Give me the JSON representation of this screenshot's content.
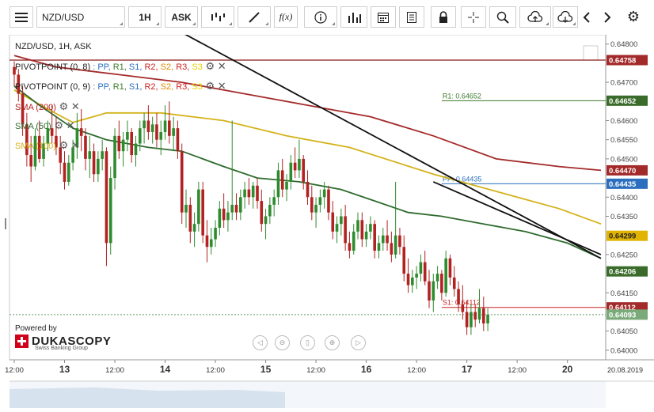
{
  "toolbar": {
    "menu_icon": "hamburger-menu-icon",
    "symbol": "NZD/USD",
    "timeframe": "1H",
    "side": "ASK",
    "items": [
      "candles-icon",
      "draw-line-icon",
      "function-icon",
      "info-icon",
      "volume-bars-icon",
      "calendar-icon",
      "report-icon",
      "lock-icon",
      "crosshair-icon",
      "zoom-icon",
      "upload-cloud-icon",
      "download-cloud-icon",
      "prev-icon",
      "next-icon",
      "gear-icon"
    ],
    "function_label": "f(x)"
  },
  "chart_header": "NZD/USD, 1H, ASK",
  "indicators": [
    {
      "name": "PIVOTPOINT (0, 8)",
      "parts": [
        [
          "PP",
          "#2a6ebd"
        ],
        [
          "R1",
          "#3a7a2a"
        ],
        [
          "S1",
          "#2a6ebd"
        ],
        [
          "R2",
          "#cc2020"
        ],
        [
          "S2",
          "#e08a00"
        ],
        [
          "R3",
          "#cc2020"
        ],
        [
          "S3",
          "#e8d000"
        ]
      ]
    },
    {
      "name": "PIVOTPOINT (0, 9)",
      "parts": [
        [
          "PP",
          "#2a6ebd"
        ],
        [
          "R1",
          "#3a7a2a"
        ],
        [
          "S1",
          "#2a6ebd"
        ],
        [
          "R2",
          "#cc2020"
        ],
        [
          "S2",
          "#e08a00"
        ],
        [
          "R3",
          "#cc2020"
        ],
        [
          "S3",
          "#e8d000"
        ]
      ]
    },
    {
      "name": "SMA (200)",
      "color": "#b22222"
    },
    {
      "name": "SMA (50)",
      "color": "#2e6b2e"
    },
    {
      "name": "SMA (100)",
      "color": "#d4b21a"
    }
  ],
  "powered_by": "Powered by",
  "brand": "DUKASCOPY",
  "brand_sub": "Swiss Banking Group",
  "chart_data": {
    "type": "candlestick",
    "symbol": "NZD/USD",
    "timeframe": "1H",
    "ylim": [
      0.63975,
      0.6482
    ],
    "y_ticks": [
      "0.64800",
      "0.64700",
      "0.64600",
      "0.64550",
      "0.64500",
      "0.64400",
      "0.64350",
      "0.64250",
      "0.64150",
      "0.64050",
      "0.64000"
    ],
    "x_ticks": [
      {
        "label": "12:00",
        "bold": false,
        "t": 0
      },
      {
        "label": "13",
        "bold": true,
        "t": 12
      },
      {
        "label": "12:00",
        "bold": false,
        "t": 24
      },
      {
        "label": "14",
        "bold": true,
        "t": 36
      },
      {
        "label": "12:00",
        "bold": false,
        "t": 48
      },
      {
        "label": "15",
        "bold": true,
        "t": 60
      },
      {
        "label": "12:00",
        "bold": false,
        "t": 72
      },
      {
        "label": "16",
        "bold": true,
        "t": 84
      },
      {
        "label": "12:00",
        "bold": false,
        "t": 96
      },
      {
        "label": "17",
        "bold": true,
        "t": 108
      },
      {
        "label": "12:00",
        "bold": false,
        "t": 120
      },
      {
        "label": "20",
        "bold": true,
        "t": 132
      }
    ],
    "x_end_label": "20.08.2019",
    "candles": [
      [
        0.6474,
        0.64755,
        0.6469,
        0.6472
      ],
      [
        0.6472,
        0.64735,
        0.6465,
        0.6467
      ],
      [
        0.6467,
        0.6469,
        0.6456,
        0.6459
      ],
      [
        0.6459,
        0.6462,
        0.6448,
        0.6451
      ],
      [
        0.6451,
        0.6456,
        0.6444,
        0.6448
      ],
      [
        0.6448,
        0.6458,
        0.6447,
        0.6456
      ],
      [
        0.6456,
        0.646,
        0.6449,
        0.645
      ],
      [
        0.645,
        0.6456,
        0.6448,
        0.6454
      ],
      [
        0.6454,
        0.646,
        0.6452,
        0.6458
      ],
      [
        0.6458,
        0.6464,
        0.6454,
        0.6456
      ],
      [
        0.6456,
        0.6461,
        0.6451,
        0.6453
      ],
      [
        0.6453,
        0.6456,
        0.6446,
        0.6449
      ],
      [
        0.6449,
        0.6452,
        0.6442,
        0.6444
      ],
      [
        0.6444,
        0.6451,
        0.6443,
        0.6449
      ],
      [
        0.6449,
        0.6455,
        0.6447,
        0.6453
      ],
      [
        0.6453,
        0.6462,
        0.645,
        0.6458
      ],
      [
        0.6458,
        0.6463,
        0.6452,
        0.6456
      ],
      [
        0.6456,
        0.6458,
        0.6447,
        0.645
      ],
      [
        0.645,
        0.6456,
        0.6445,
        0.6452
      ],
      [
        0.6452,
        0.6454,
        0.6444,
        0.6446
      ],
      [
        0.6446,
        0.6452,
        0.6444,
        0.645
      ],
      [
        0.645,
        0.6455,
        0.6447,
        0.6452
      ],
      [
        0.6452,
        0.6453,
        0.6422,
        0.6428
      ],
      [
        0.6428,
        0.6448,
        0.6425,
        0.6445
      ],
      [
        0.6445,
        0.6458,
        0.6442,
        0.6456
      ],
      [
        0.6456,
        0.646,
        0.645,
        0.6452
      ],
      [
        0.6452,
        0.6457,
        0.6448,
        0.6455
      ],
      [
        0.6455,
        0.646,
        0.6452,
        0.6457
      ],
      [
        0.6457,
        0.6458,
        0.6449,
        0.6451
      ],
      [
        0.6451,
        0.6456,
        0.6448,
        0.6454
      ],
      [
        0.6454,
        0.646,
        0.6452,
        0.6458
      ],
      [
        0.6458,
        0.6462,
        0.6454,
        0.646
      ],
      [
        0.646,
        0.6464,
        0.6455,
        0.6457
      ],
      [
        0.6457,
        0.6461,
        0.6454,
        0.6459
      ],
      [
        0.6459,
        0.6462,
        0.6453,
        0.6455
      ],
      [
        0.6455,
        0.646,
        0.6451,
        0.6457
      ],
      [
        0.6457,
        0.6464,
        0.6455,
        0.646
      ],
      [
        0.646,
        0.6465,
        0.6454,
        0.6456
      ],
      [
        0.6456,
        0.6461,
        0.6452,
        0.6458
      ],
      [
        0.6458,
        0.646,
        0.645,
        0.6452
      ],
      [
        0.6452,
        0.6454,
        0.6433,
        0.6436
      ],
      [
        0.6436,
        0.6442,
        0.6432,
        0.6438
      ],
      [
        0.6438,
        0.644,
        0.6428,
        0.6431
      ],
      [
        0.6431,
        0.6436,
        0.6427,
        0.6433
      ],
      [
        0.6433,
        0.6444,
        0.6431,
        0.6442
      ],
      [
        0.6442,
        0.6444,
        0.6428,
        0.643
      ],
      [
        0.643,
        0.6434,
        0.6423,
        0.6427
      ],
      [
        0.6427,
        0.6432,
        0.6425,
        0.6429
      ],
      [
        0.6429,
        0.6434,
        0.6427,
        0.6432
      ],
      [
        0.6432,
        0.6439,
        0.643,
        0.6437
      ],
      [
        0.6437,
        0.6441,
        0.6432,
        0.6434
      ],
      [
        0.6434,
        0.6439,
        0.6431,
        0.6436
      ],
      [
        0.6436,
        0.646,
        0.6434,
        0.6438
      ],
      [
        0.6438,
        0.6441,
        0.6434,
        0.6436
      ],
      [
        0.6436,
        0.6442,
        0.6434,
        0.644
      ],
      [
        0.644,
        0.6444,
        0.6437,
        0.6442
      ],
      [
        0.6442,
        0.6445,
        0.6438,
        0.644
      ],
      [
        0.644,
        0.6444,
        0.6437,
        0.6443
      ],
      [
        0.6443,
        0.6445,
        0.6437,
        0.6439
      ],
      [
        0.6439,
        0.6442,
        0.6431,
        0.6433
      ],
      [
        0.6433,
        0.6437,
        0.6429,
        0.6435
      ],
      [
        0.6435,
        0.644,
        0.6433,
        0.6438
      ],
      [
        0.6438,
        0.6442,
        0.6435,
        0.644
      ],
      [
        0.644,
        0.6449,
        0.6438,
        0.6447
      ],
      [
        0.6447,
        0.645,
        0.644,
        0.6442
      ],
      [
        0.6442,
        0.6446,
        0.6439,
        0.6444
      ],
      [
        0.6444,
        0.6451,
        0.6442,
        0.6449
      ],
      [
        0.6449,
        0.6453,
        0.6445,
        0.6447
      ],
      [
        0.6447,
        0.6455,
        0.6445,
        0.645
      ],
      [
        0.645,
        0.6451,
        0.6442,
        0.6444
      ],
      [
        0.6444,
        0.6447,
        0.6438,
        0.644
      ],
      [
        0.644,
        0.6443,
        0.6434,
        0.6436
      ],
      [
        0.6436,
        0.644,
        0.6432,
        0.6438
      ],
      [
        0.6438,
        0.6442,
        0.6436,
        0.644
      ],
      [
        0.644,
        0.6444,
        0.6437,
        0.6442
      ],
      [
        0.6442,
        0.6443,
        0.6434,
        0.6436
      ],
      [
        0.6436,
        0.6439,
        0.6429,
        0.6431
      ],
      [
        0.6431,
        0.6435,
        0.6428,
        0.6433
      ],
      [
        0.6433,
        0.6437,
        0.643,
        0.6435
      ],
      [
        0.6435,
        0.6438,
        0.6426,
        0.6428
      ],
      [
        0.6428,
        0.6431,
        0.6424,
        0.6426
      ],
      [
        0.6426,
        0.6433,
        0.6425,
        0.6431
      ],
      [
        0.6431,
        0.6436,
        0.6429,
        0.6434
      ],
      [
        0.6434,
        0.6436,
        0.6427,
        0.6429
      ],
      [
        0.6429,
        0.6433,
        0.6427,
        0.6431
      ],
      [
        0.6431,
        0.6435,
        0.6429,
        0.6433
      ],
      [
        0.6433,
        0.6434,
        0.6424,
        0.6426
      ],
      [
        0.6426,
        0.643,
        0.6424,
        0.6428
      ],
      [
        0.6428,
        0.6432,
        0.6426,
        0.643
      ],
      [
        0.643,
        0.6434,
        0.6426,
        0.6428
      ],
      [
        0.6428,
        0.6431,
        0.6423,
        0.6425
      ],
      [
        0.6425,
        0.6444,
        0.6424,
        0.643
      ],
      [
        0.643,
        0.6432,
        0.6425,
        0.6427
      ],
      [
        0.6427,
        0.643,
        0.6418,
        0.642
      ],
      [
        0.642,
        0.6424,
        0.6415,
        0.6417
      ],
      [
        0.6417,
        0.6421,
        0.6415,
        0.6419
      ],
      [
        0.6419,
        0.6422,
        0.6416,
        0.642
      ],
      [
        0.642,
        0.6425,
        0.6418,
        0.6423
      ],
      [
        0.6423,
        0.6426,
        0.6417,
        0.6418
      ],
      [
        0.6418,
        0.6421,
        0.6411,
        0.6413
      ],
      [
        0.6413,
        0.642,
        0.641,
        0.6418
      ],
      [
        0.6418,
        0.6422,
        0.6416,
        0.642
      ],
      [
        0.642,
        0.6421,
        0.6413,
        0.6415
      ],
      [
        0.6415,
        0.6426,
        0.6414,
        0.6424
      ],
      [
        0.6424,
        0.6425,
        0.6417,
        0.6419
      ],
      [
        0.6419,
        0.6422,
        0.6414,
        0.6416
      ],
      [
        0.6416,
        0.6418,
        0.641,
        0.6412
      ],
      [
        0.6412,
        0.6417,
        0.6408,
        0.641
      ],
      [
        0.641,
        0.6413,
        0.6404,
        0.6406
      ],
      [
        0.6406,
        0.6412,
        0.6404,
        0.641
      ],
      [
        0.641,
        0.6412,
        0.6406,
        0.6408
      ],
      [
        0.6408,
        0.6416,
        0.6407,
        0.6411
      ],
      [
        0.6411,
        0.6414,
        0.6405,
        0.6407
      ],
      [
        0.6407,
        0.6411,
        0.6405,
        0.64093
      ]
    ],
    "sma200": [
      [
        0,
        0.6477
      ],
      [
        10,
        0.6474
      ],
      [
        25,
        0.6472
      ],
      [
        40,
        0.647
      ],
      [
        55,
        0.6467
      ],
      [
        70,
        0.6464
      ],
      [
        85,
        0.6461
      ],
      [
        100,
        0.6456
      ],
      [
        115,
        0.645
      ],
      [
        130,
        0.6448
      ],
      [
        140,
        0.6447
      ]
    ],
    "sma100": [
      [
        0,
        0.6468
      ],
      [
        8,
        0.6463
      ],
      [
        14,
        0.64595
      ],
      [
        22,
        0.6462
      ],
      [
        35,
        0.6462
      ],
      [
        50,
        0.646
      ],
      [
        65,
        0.6456
      ],
      [
        80,
        0.6453
      ],
      [
        90,
        0.64495
      ],
      [
        100,
        0.6446
      ],
      [
        110,
        0.6443
      ],
      [
        120,
        0.644
      ],
      [
        130,
        0.6437
      ],
      [
        140,
        0.6433
      ]
    ],
    "sma50": [
      [
        0,
        0.6469
      ],
      [
        6,
        0.6464
      ],
      [
        14,
        0.6458
      ],
      [
        22,
        0.6455
      ],
      [
        32,
        0.6453
      ],
      [
        40,
        0.6452
      ],
      [
        50,
        0.6448
      ],
      [
        58,
        0.6445
      ],
      [
        68,
        0.6444
      ],
      [
        78,
        0.6442
      ],
      [
        86,
        0.6439
      ],
      [
        94,
        0.6436
      ],
      [
        102,
        0.6435
      ],
      [
        112,
        0.6433
      ],
      [
        122,
        0.6431
      ],
      [
        132,
        0.6428
      ],
      [
        140,
        0.6424
      ]
    ],
    "trendlines": [
      {
        "color": "#111111",
        "points": [
          [
            40,
            0.6483
          ],
          [
            140,
            0.6424
          ]
        ]
      },
      {
        "color": "#111111",
        "points": [
          [
            100,
            0.6444
          ],
          [
            140,
            0.6425
          ]
        ]
      }
    ],
    "pivot_levels": [
      {
        "label": "R1: 0.64652",
        "value": 0.64652,
        "color": "#3a7a2a",
        "start": 102
      },
      {
        "label": "PP: 0.64435",
        "value": 0.64435,
        "color": "#2a6ebd",
        "start": 102
      },
      {
        "label": "S1: 0.64112",
        "value": 0.64112,
        "color": "#cc2020",
        "start": 102
      }
    ],
    "full_lines": [
      {
        "value": 0.64758,
        "color": "#8b1a1a"
      }
    ],
    "price_tags": [
      {
        "label": "0.64758",
        "value": 0.64758,
        "bg": "#a32a2a",
        "fg": "#ffffff"
      },
      {
        "label": "0.64652",
        "value": 0.64652,
        "bg": "#3a6b2a",
        "fg": "#ffffff"
      },
      {
        "label": "0.64470",
        "value": 0.6447,
        "bg": "#a32a2a",
        "fg": "#ffffff"
      },
      {
        "label": "0.64435",
        "value": 0.64435,
        "bg": "#2a6ebd",
        "fg": "#ffffff"
      },
      {
        "label": "0.64299",
        "value": 0.64299,
        "bg": "#e0b400",
        "fg": "#222222"
      },
      {
        "label": "0.64206",
        "value": 0.64206,
        "bg": "#3a6b2a",
        "fg": "#ffffff"
      },
      {
        "label": "0.64112",
        "value": 0.64112,
        "bg": "#a32a2a",
        "fg": "#ffffff"
      },
      {
        "label": "0.64093",
        "value": 0.64093,
        "bg": "#7aaa7a",
        "fg": "#ffffff"
      }
    ],
    "current_price": 0.64093,
    "up_color": "#2e8b2e",
    "down_color": "#b22222"
  }
}
